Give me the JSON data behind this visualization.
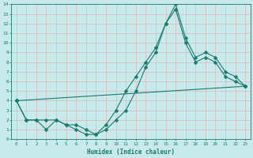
{
  "xlabel": "Humidex (Indice chaleur)",
  "xlim": [
    -0.5,
    23.5
  ],
  "ylim": [
    0,
    14
  ],
  "xticks": [
    0,
    1,
    2,
    3,
    4,
    5,
    6,
    7,
    8,
    9,
    10,
    11,
    12,
    13,
    14,
    15,
    16,
    17,
    18,
    19,
    20,
    21,
    22,
    23
  ],
  "yticks": [
    0,
    1,
    2,
    3,
    4,
    5,
    6,
    7,
    8,
    9,
    10,
    11,
    12,
    13,
    14
  ],
  "bg_color": "#c8eaea",
  "grid_color": "#b0d8d8",
  "line_color": "#1a7a6e",
  "line1_x": [
    0,
    1,
    2,
    3,
    4,
    5,
    6,
    7,
    8,
    9,
    10,
    11,
    12,
    13,
    14,
    15,
    16,
    17,
    18,
    19,
    20,
    21,
    22,
    23
  ],
  "line1_y": [
    4,
    2,
    2,
    1,
    2,
    1.5,
    1,
    0.5,
    0.5,
    1,
    2,
    3,
    5,
    7.5,
    9,
    12,
    14,
    10.5,
    8.5,
    9,
    8.5,
    7,
    6.5,
    5.5
  ],
  "line2_x": [
    0,
    1,
    2,
    3,
    4,
    5,
    6,
    7,
    8,
    9,
    10,
    11,
    12,
    13,
    14,
    15,
    16,
    17,
    18,
    19,
    20,
    21,
    22,
    23
  ],
  "line2_y": [
    4,
    2,
    2,
    2,
    2,
    1.5,
    1.5,
    1,
    0.5,
    1.5,
    3,
    5,
    6.5,
    8,
    9.5,
    12,
    13.5,
    10,
    8,
    8.5,
    8,
    6.5,
    6,
    5.5
  ],
  "line3_x": [
    0,
    23
  ],
  "line3_y": [
    4,
    5.5
  ]
}
